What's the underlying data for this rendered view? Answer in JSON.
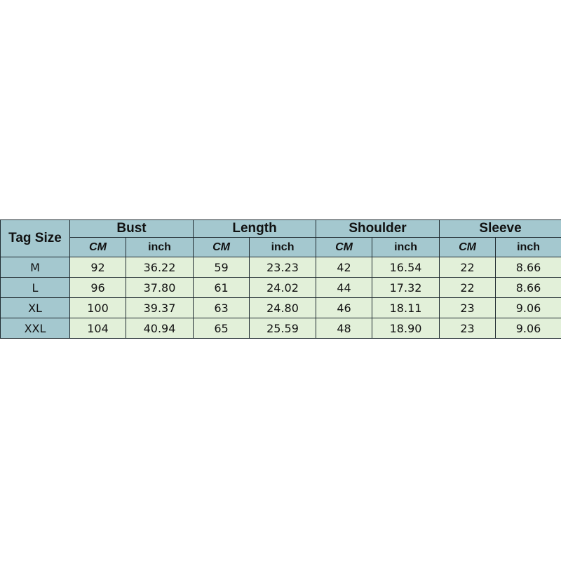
{
  "colors": {
    "header": "#a4c8cf",
    "cell": "#e2f0d9",
    "border": "#1f2a30"
  },
  "table": {
    "tag_header": "Tag Size",
    "groups": [
      "Bust",
      "Length",
      "Shoulder",
      "Sleeve"
    ],
    "units": [
      "CM",
      "inch"
    ],
    "rows": [
      [
        "M",
        "92",
        "36.22",
        "59",
        "23.23",
        "42",
        "16.54",
        "22",
        "8.66"
      ],
      [
        "L",
        "96",
        "37.80",
        "61",
        "24.02",
        "44",
        "17.32",
        "22",
        "8.66"
      ],
      [
        "XL",
        "100",
        "39.37",
        "63",
        "24.80",
        "46",
        "18.11",
        "23",
        "9.06"
      ],
      [
        "XXL",
        "104",
        "40.94",
        "65",
        "25.59",
        "48",
        "18.90",
        "23",
        "9.06"
      ]
    ]
  }
}
